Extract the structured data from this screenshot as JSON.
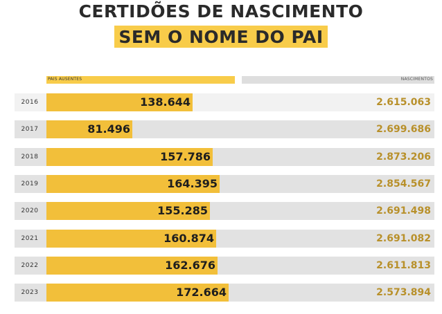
{
  "title_line1": "CERTIDÕES DE NASCIMENTO",
  "title_line2": "SEM O NOME DO PAI",
  "colors": {
    "highlight": "#f8cc4a",
    "bar": "#f2bf3a",
    "births_text": "#b8902a",
    "row_dark": "#e2e2e2",
    "row_light": "#f2f2f2"
  },
  "chart_data": {
    "type": "bar",
    "orientation": "horizontal",
    "legend": [
      "PAIS AUSENTES",
      "NASCIMENTOS"
    ],
    "categories": [
      "2016",
      "2017",
      "2018",
      "2019",
      "2020",
      "2021",
      "2022",
      "2023"
    ],
    "series": [
      {
        "name": "PAIS AUSENTES",
        "values": [
          138644,
          81496,
          157786,
          164395,
          155285,
          160874,
          162676,
          172664
        ],
        "labels": [
          "138.644",
          "81.496",
          "157.786",
          "164.395",
          "155.285",
          "160.874",
          "162.676",
          "172.664"
        ]
      },
      {
        "name": "NASCIMENTOS",
        "values": [
          2615063,
          2699686,
          2873206,
          2854567,
          2691498,
          2691082,
          2611813,
          2573894
        ],
        "labels": [
          "2.615.063",
          "2.699.686",
          "2.873.206",
          "2.854.567",
          "2.691.498",
          "2.691.082",
          "2.611.813",
          "2.573.894"
        ]
      }
    ],
    "xlim": [
      0,
      215000
    ]
  }
}
